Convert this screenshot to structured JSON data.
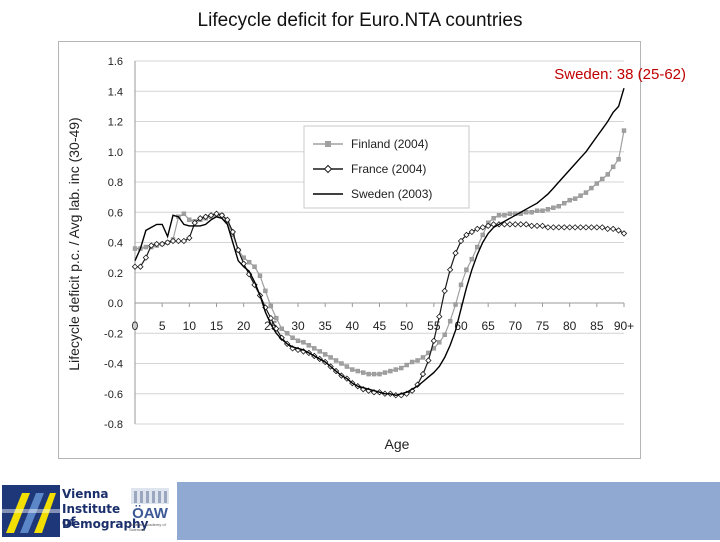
{
  "slide": {
    "title": "Lifecycle deficit for Euro.NTA countries"
  },
  "footer": {
    "institute_name_lines": [
      "Vienna",
      "Institute of",
      "Demography"
    ],
    "academy_logo_text": "ÖAW",
    "academy_name": "Austrian Academy of Sciences"
  },
  "chart_data": {
    "type": "line",
    "title": "Lifecycle deficit for Euro.NTA countries",
    "xlabel": "Age",
    "ylabel": "Lifecycle deficit p.c. / Avg lab. inc (30-49)",
    "xlim": [
      0,
      90
    ],
    "ylim": [
      -0.8,
      1.6
    ],
    "yticks": [
      1.6,
      1.4,
      1.2,
      1.0,
      0.8,
      0.6,
      0.4,
      0.2,
      0.0,
      -0.2,
      -0.4,
      -0.6,
      -0.8
    ],
    "ytick_labels": [
      "1.6",
      "1.4",
      "1.2",
      "1.0",
      "0.8",
      "0.6",
      "0.4",
      "0.2",
      "0.0",
      "-0.2",
      "-0.4",
      "-0.6",
      "-0.8"
    ],
    "xticks": [
      0,
      5,
      10,
      15,
      20,
      25,
      30,
      35,
      40,
      45,
      50,
      55,
      60,
      65,
      70,
      75,
      80,
      85,
      90
    ],
    "xtick_labels": [
      "0",
      "5",
      "10",
      "15",
      "20",
      "25",
      "30",
      "35",
      "40",
      "45",
      "50",
      "55",
      "60",
      "65",
      "70",
      "75",
      "80",
      "85",
      "90+"
    ],
    "legend_position": "upper-center",
    "grid": "horizontal",
    "annotation": "Sweden: 38  (25-62)",
    "annotation_color": "#c00000",
    "series": [
      {
        "name": "Finland (2004)",
        "color": "#a0a0a0",
        "marker": "square",
        "x": [
          0,
          1,
          2,
          3,
          4,
          5,
          6,
          7,
          8,
          9,
          10,
          11,
          12,
          13,
          14,
          15,
          16,
          17,
          18,
          19,
          20,
          21,
          22,
          23,
          24,
          25,
          26,
          27,
          28,
          29,
          30,
          31,
          32,
          33,
          34,
          35,
          36,
          37,
          38,
          39,
          40,
          41,
          42,
          43,
          44,
          45,
          46,
          47,
          48,
          49,
          50,
          51,
          52,
          53,
          54,
          55,
          56,
          57,
          58,
          59,
          60,
          61,
          62,
          63,
          64,
          65,
          66,
          67,
          68,
          69,
          70,
          71,
          72,
          73,
          74,
          75,
          76,
          77,
          78,
          79,
          80,
          81,
          82,
          83,
          84,
          85,
          86,
          87,
          88,
          89,
          90
        ],
        "y": [
          0.36,
          0.36,
          0.37,
          0.37,
          0.38,
          0.39,
          0.4,
          0.42,
          0.57,
          0.59,
          0.55,
          0.54,
          0.55,
          0.56,
          0.57,
          0.58,
          0.58,
          0.54,
          0.45,
          0.35,
          0.3,
          0.27,
          0.24,
          0.18,
          0.08,
          -0.02,
          -0.1,
          -0.17,
          -0.2,
          -0.23,
          -0.25,
          -0.26,
          -0.28,
          -0.3,
          -0.32,
          -0.34,
          -0.36,
          -0.38,
          -0.4,
          -0.42,
          -0.44,
          -0.45,
          -0.46,
          -0.47,
          -0.47,
          -0.47,
          -0.46,
          -0.45,
          -0.44,
          -0.43,
          -0.41,
          -0.39,
          -0.38,
          -0.36,
          -0.33,
          -0.3,
          -0.26,
          -0.21,
          -0.12,
          -0.01,
          0.12,
          0.22,
          0.29,
          0.37,
          0.45,
          0.53,
          0.56,
          0.58,
          0.58,
          0.59,
          0.59,
          0.59,
          0.6,
          0.6,
          0.61,
          0.61,
          0.62,
          0.63,
          0.64,
          0.66,
          0.68,
          0.69,
          0.71,
          0.73,
          0.76,
          0.79,
          0.82,
          0.85,
          0.9,
          0.95,
          1.14
        ]
      },
      {
        "name": "France (2004)",
        "color": "#1a1a1a",
        "marker": "diamond",
        "x": [
          0,
          1,
          2,
          3,
          4,
          5,
          6,
          7,
          8,
          9,
          10,
          11,
          12,
          13,
          14,
          15,
          16,
          17,
          18,
          19,
          20,
          21,
          22,
          23,
          24,
          25,
          26,
          27,
          28,
          29,
          30,
          31,
          32,
          33,
          34,
          35,
          36,
          37,
          38,
          39,
          40,
          41,
          42,
          43,
          44,
          45,
          46,
          47,
          48,
          49,
          50,
          51,
          52,
          53,
          54,
          55,
          56,
          57,
          58,
          59,
          60,
          61,
          62,
          63,
          64,
          65,
          66,
          67,
          68,
          69,
          70,
          71,
          72,
          73,
          74,
          75,
          76,
          77,
          78,
          79,
          80,
          81,
          82,
          83,
          84,
          85,
          86,
          87,
          88,
          89,
          90
        ],
        "y": [
          0.24,
          0.24,
          0.3,
          0.38,
          0.39,
          0.39,
          0.4,
          0.41,
          0.41,
          0.41,
          0.43,
          0.53,
          0.56,
          0.57,
          0.58,
          0.59,
          0.58,
          0.55,
          0.47,
          0.35,
          0.26,
          0.19,
          0.12,
          0.05,
          -0.03,
          -0.1,
          -0.17,
          -0.23,
          -0.27,
          -0.3,
          -0.31,
          -0.32,
          -0.33,
          -0.35,
          -0.37,
          -0.39,
          -0.42,
          -0.45,
          -0.48,
          -0.5,
          -0.53,
          -0.55,
          -0.57,
          -0.58,
          -0.59,
          -0.59,
          -0.6,
          -0.6,
          -0.61,
          -0.61,
          -0.6,
          -0.58,
          -0.54,
          -0.47,
          -0.38,
          -0.25,
          -0.09,
          0.08,
          0.22,
          0.33,
          0.41,
          0.45,
          0.47,
          0.49,
          0.5,
          0.51,
          0.52,
          0.52,
          0.52,
          0.52,
          0.52,
          0.52,
          0.52,
          0.51,
          0.51,
          0.51,
          0.5,
          0.5,
          0.5,
          0.5,
          0.5,
          0.5,
          0.5,
          0.5,
          0.5,
          0.5,
          0.5,
          0.49,
          0.49,
          0.48,
          0.46
        ]
      },
      {
        "name": "Sweden (2003)",
        "color": "#000000",
        "marker": "none",
        "x": [
          0,
          1,
          2,
          3,
          4,
          5,
          6,
          7,
          8,
          9,
          10,
          11,
          12,
          13,
          14,
          15,
          16,
          17,
          18,
          19,
          20,
          21,
          22,
          23,
          24,
          25,
          26,
          27,
          28,
          29,
          30,
          31,
          32,
          33,
          34,
          35,
          36,
          37,
          38,
          39,
          40,
          41,
          42,
          43,
          44,
          45,
          46,
          47,
          48,
          49,
          50,
          51,
          52,
          53,
          54,
          55,
          56,
          57,
          58,
          59,
          60,
          61,
          62,
          63,
          64,
          65,
          66,
          67,
          68,
          69,
          70,
          71,
          72,
          73,
          74,
          75,
          76,
          77,
          78,
          79,
          80,
          81,
          82,
          83,
          84,
          85,
          86,
          87,
          88,
          89,
          90
        ],
        "y": [
          0.28,
          0.36,
          0.48,
          0.5,
          0.52,
          0.52,
          0.44,
          0.58,
          0.57,
          0.52,
          0.51,
          0.51,
          0.51,
          0.52,
          0.55,
          0.57,
          0.56,
          0.52,
          0.4,
          0.28,
          0.24,
          0.21,
          0.14,
          0.05,
          -0.06,
          -0.14,
          -0.2,
          -0.24,
          -0.27,
          -0.29,
          -0.3,
          -0.31,
          -0.33,
          -0.35,
          -0.37,
          -0.39,
          -0.42,
          -0.45,
          -0.48,
          -0.5,
          -0.53,
          -0.55,
          -0.56,
          -0.57,
          -0.58,
          -0.59,
          -0.6,
          -0.6,
          -0.61,
          -0.6,
          -0.59,
          -0.57,
          -0.55,
          -0.52,
          -0.49,
          -0.46,
          -0.42,
          -0.36,
          -0.28,
          -0.18,
          -0.04,
          0.1,
          0.22,
          0.32,
          0.4,
          0.46,
          0.5,
          0.52,
          0.54,
          0.56,
          0.58,
          0.6,
          0.62,
          0.64,
          0.66,
          0.69,
          0.72,
          0.76,
          0.8,
          0.84,
          0.88,
          0.92,
          0.96,
          1.0,
          1.05,
          1.1,
          1.15,
          1.2,
          1.26,
          1.3,
          1.42
        ]
      }
    ]
  }
}
